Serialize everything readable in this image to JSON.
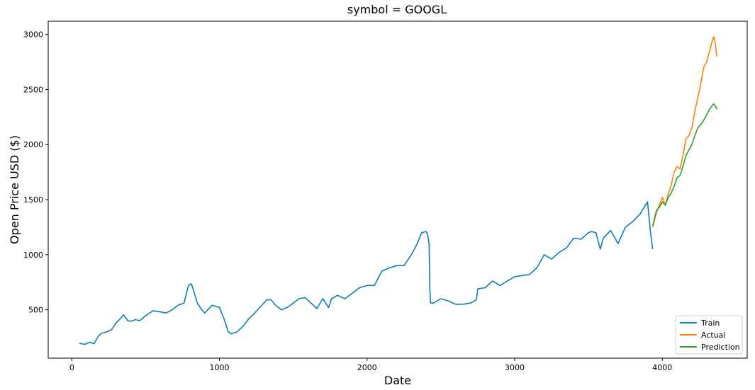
{
  "chart_data": {
    "type": "line",
    "title": "symbol = GOOGL",
    "xlabel": "Date",
    "ylabel": "Open Price USD ($)",
    "xlim": [
      -160,
      4575
    ],
    "ylim": [
      60,
      3120
    ],
    "xticks": [
      0,
      1000,
      2000,
      3000,
      4000
    ],
    "yticks": [
      500,
      1000,
      1500,
      2000,
      2500,
      3000
    ],
    "grid": false,
    "legend_position": "lower-right",
    "series": [
      {
        "name": "Train",
        "color": "#0e7fb4",
        "x": [
          50,
          90,
          120,
          150,
          180,
          200,
          240,
          270,
          300,
          330,
          350,
          380,
          400,
          430,
          460,
          500,
          550,
          600,
          640,
          680,
          720,
          760,
          790,
          810,
          830,
          850,
          880,
          900,
          950,
          1000,
          1030,
          1060,
          1080,
          1120,
          1160,
          1200,
          1240,
          1280,
          1320,
          1350,
          1380,
          1420,
          1460,
          1500,
          1540,
          1580,
          1620,
          1660,
          1700,
          1740,
          1760,
          1800,
          1850,
          1900,
          1950,
          2000,
          2050,
          2100,
          2150,
          2200,
          2250,
          2300,
          2340,
          2370,
          2400,
          2410,
          2420,
          2425,
          2430,
          2450,
          2500,
          2550,
          2600,
          2650,
          2700,
          2740,
          2750,
          2800,
          2850,
          2900,
          2950,
          3000,
          3050,
          3100,
          3150,
          3200,
          3250,
          3300,
          3350,
          3400,
          3450,
          3500,
          3520,
          3550,
          3580,
          3600,
          3650,
          3700,
          3750,
          3800,
          3850,
          3900,
          3920,
          3935
        ],
        "y": [
          195,
          185,
          205,
          190,
          260,
          285,
          300,
          320,
          380,
          420,
          455,
          400,
          395,
          410,
          400,
          445,
          490,
          480,
          470,
          500,
          540,
          560,
          720,
          735,
          650,
          560,
          500,
          470,
          540,
          520,
          420,
          300,
          280,
          300,
          350,
          420,
          470,
          530,
          590,
          590,
          540,
          500,
          520,
          560,
          600,
          610,
          560,
          510,
          600,
          520,
          600,
          630,
          600,
          650,
          700,
          720,
          720,
          850,
          880,
          900,
          900,
          1000,
          1100,
          1200,
          1210,
          1180,
          1100,
          700,
          560,
          560,
          600,
          580,
          550,
          550,
          560,
          590,
          690,
          700,
          760,
          720,
          760,
          800,
          810,
          820,
          880,
          1000,
          960,
          1020,
          1060,
          1150,
          1140,
          1200,
          1210,
          1200,
          1050,
          1150,
          1220,
          1100,
          1250,
          1300,
          1370,
          1480,
          1200,
          1050
        ]
      },
      {
        "name": "Actual",
        "color": "#ff7f0e",
        "x": [
          3935,
          3960,
          3980,
          4000,
          4020,
          4040,
          4060,
          4080,
          4100,
          4120,
          4140,
          4160,
          4180,
          4200,
          4220,
          4240,
          4260,
          4280,
          4300,
          4320,
          4330,
          4340,
          4350,
          4360,
          4370
        ],
        "y": [
          1250,
          1380,
          1450,
          1520,
          1450,
          1550,
          1630,
          1750,
          1800,
          1780,
          1900,
          2050,
          2080,
          2150,
          2300,
          2420,
          2550,
          2700,
          2750,
          2850,
          2900,
          2950,
          2980,
          2900,
          2800
        ]
      },
      {
        "name": "Prediction",
        "color": "#2ca02c",
        "x": [
          3935,
          3960,
          3980,
          4000,
          4020,
          4040,
          4060,
          4080,
          4100,
          4120,
          4140,
          4160,
          4180,
          4200,
          4220,
          4240,
          4260,
          4280,
          4300,
          4320,
          4330,
          4340,
          4350,
          4360,
          4370
        ],
        "y": [
          1260,
          1400,
          1430,
          1480,
          1450,
          1520,
          1560,
          1620,
          1700,
          1720,
          1800,
          1900,
          1950,
          2000,
          2080,
          2150,
          2180,
          2220,
          2270,
          2320,
          2340,
          2360,
          2370,
          2350,
          2320
        ]
      }
    ]
  }
}
